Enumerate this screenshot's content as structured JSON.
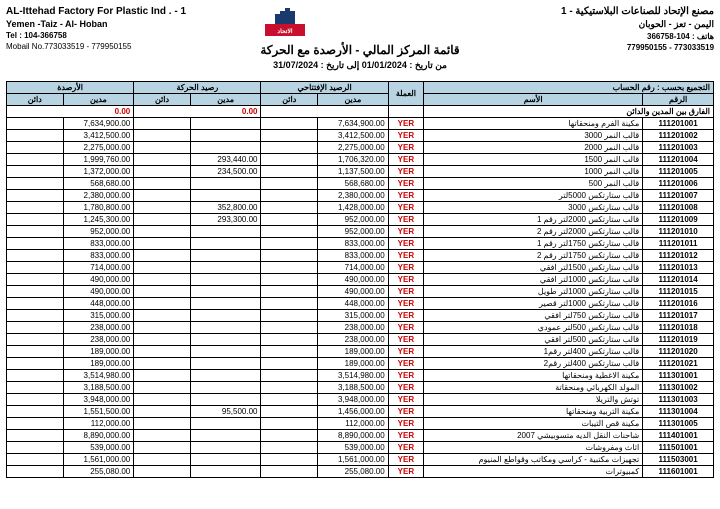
{
  "header": {
    "company_en": "AL-Ittehad Factory For Plastic Ind . - 1",
    "company_ar": "مصنع الإتحاد للصناعات البلاستيكية - 1",
    "location_en": "Yemen -Taiz - Al- Hoban",
    "location_ar": "اليمن - تعز - الحوبان",
    "tel_label_en": "Tel : ",
    "tel_en": "104-366758",
    "tel_label_ar": "هاتف : ",
    "tel_ar": "104-366758",
    "mobile_label_en": "Mobail No.",
    "mobile_en": "773033519 - 779950155",
    "mobile_ar": "773033519 - 779950155"
  },
  "report": {
    "title": "قائمة المركز المالي - الأرصدة مع الحركة",
    "from_label": "من تاريخ : ",
    "from": "01/01/2024",
    "to_label": "   إلى تاريخ : ",
    "to": "31/07/2024"
  },
  "table": {
    "group_label": "التجميع بحسب : رقم الحساب",
    "h_balance": "الأرصدة",
    "h_movement": "رصيد الحركة",
    "h_opening": "الرصيد الإفتتاحي",
    "h_currency": "العملة",
    "h_name": "الأسم",
    "h_code": "الرقم",
    "h_debit": "مدين",
    "h_credit": "دائن",
    "diff_label": "الفارق بين المدين والدائن",
    "diff_bal": "0.00",
    "diff_mov": "0.00",
    "rows": [
      {
        "code": "111201001",
        "name": "مكينة الفرم ومنحقاتها",
        "cur": "YER",
        "od": "7,634,900.00",
        "oc": "",
        "md": "",
        "mc": "",
        "bd": "7,634,900.00",
        "bc": ""
      },
      {
        "code": "111201002",
        "name": "قالب النمر 3000",
        "cur": "YER",
        "od": "3,412,500.00",
        "oc": "",
        "md": "",
        "mc": "",
        "bd": "3,412,500.00",
        "bc": ""
      },
      {
        "code": "111201003",
        "name": "قالب النمر 2000",
        "cur": "YER",
        "od": "2,275,000.00",
        "oc": "",
        "md": "",
        "mc": "",
        "bd": "2,275,000.00",
        "bc": ""
      },
      {
        "code": "111201004",
        "name": "قالب النمر 1500",
        "cur": "YER",
        "od": "1,706,320.00",
        "oc": "",
        "md": "293,440.00",
        "mc": "",
        "bd": "1,999,760.00",
        "bc": ""
      },
      {
        "code": "111201005",
        "name": "قالب النمر 1000",
        "cur": "YER",
        "od": "1,137,500.00",
        "oc": "",
        "md": "234,500.00",
        "mc": "",
        "bd": "1,372,000.00",
        "bc": ""
      },
      {
        "code": "111201006",
        "name": "قالب النمر 500",
        "cur": "YER",
        "od": "568,680.00",
        "oc": "",
        "md": "",
        "mc": "",
        "bd": "568,680.00",
        "bc": ""
      },
      {
        "code": "111201007",
        "name": "قالب ستارتكس 5000لتر",
        "cur": "YER",
        "od": "2,380,000.00",
        "oc": "",
        "md": "",
        "mc": "",
        "bd": "2,380,000.00",
        "bc": ""
      },
      {
        "code": "111201008",
        "name": "قالب ستارتكس 3000",
        "cur": "YER",
        "od": "1,428,000.00",
        "oc": "",
        "md": "352,800.00",
        "mc": "",
        "bd": "1,780,800.00",
        "bc": ""
      },
      {
        "code": "111201009",
        "name": "قالب ستارتكس 2000لتر رقم 1",
        "cur": "YER",
        "od": "952,000.00",
        "oc": "",
        "md": "293,300.00",
        "mc": "",
        "bd": "1,245,300.00",
        "bc": ""
      },
      {
        "code": "111201010",
        "name": "قالب ستارتكس 2000لتر رقم 2",
        "cur": "YER",
        "od": "952,000.00",
        "oc": "",
        "md": "",
        "mc": "",
        "bd": "952,000.00",
        "bc": ""
      },
      {
        "code": "111201011",
        "name": "قالب ستارتكس 1750لتر رقم 1",
        "cur": "YER",
        "od": "833,000.00",
        "oc": "",
        "md": "",
        "mc": "",
        "bd": "833,000.00",
        "bc": ""
      },
      {
        "code": "111201012",
        "name": "قالب ستارتكس 1750لتر رقم 2",
        "cur": "YER",
        "od": "833,000.00",
        "oc": "",
        "md": "",
        "mc": "",
        "bd": "833,000.00",
        "bc": ""
      },
      {
        "code": "111201013",
        "name": "قالب ستارتكس 1500لتر افقي",
        "cur": "YER",
        "od": "714,000.00",
        "oc": "",
        "md": "",
        "mc": "",
        "bd": "714,000.00",
        "bc": ""
      },
      {
        "code": "111201014",
        "name": "قالب ستارتكس 1000لتر افقي",
        "cur": "YER",
        "od": "490,000.00",
        "oc": "",
        "md": "",
        "mc": "",
        "bd": "490,000.00",
        "bc": ""
      },
      {
        "code": "111201015",
        "name": "قالب ستارتكس 1000لتر طويل",
        "cur": "YER",
        "od": "490,000.00",
        "oc": "",
        "md": "",
        "mc": "",
        "bd": "490,000.00",
        "bc": ""
      },
      {
        "code": "111201016",
        "name": "قالب ستارتكس 1000لتر قصير",
        "cur": "YER",
        "od": "448,000.00",
        "oc": "",
        "md": "",
        "mc": "",
        "bd": "448,000.00",
        "bc": ""
      },
      {
        "code": "111201017",
        "name": "قالب ستارتكس 750لتر افقي",
        "cur": "YER",
        "od": "315,000.00",
        "oc": "",
        "md": "",
        "mc": "",
        "bd": "315,000.00",
        "bc": ""
      },
      {
        "code": "111201018",
        "name": "قالب ستارتكس 500لتر عمودي",
        "cur": "YER",
        "od": "238,000.00",
        "oc": "",
        "md": "",
        "mc": "",
        "bd": "238,000.00",
        "bc": ""
      },
      {
        "code": "111201019",
        "name": "قالب ستارتكس 500لتر افقي",
        "cur": "YER",
        "od": "238,000.00",
        "oc": "",
        "md": "",
        "mc": "",
        "bd": "238,000.00",
        "bc": ""
      },
      {
        "code": "111201020",
        "name": "قالب ستارتكس 400لتر رقم1",
        "cur": "YER",
        "od": "189,000.00",
        "oc": "",
        "md": "",
        "mc": "",
        "bd": "189,000.00",
        "bc": ""
      },
      {
        "code": "111201021",
        "name": "قالب ستارتكس 400لتر رقم2",
        "cur": "YER",
        "od": "189,000.00",
        "oc": "",
        "md": "",
        "mc": "",
        "bd": "189,000.00",
        "bc": ""
      },
      {
        "code": "111301001",
        "name": "مكينة الاغطية ومنحقاتها",
        "cur": "YER",
        "od": "3,514,980.00",
        "oc": "",
        "md": "",
        "mc": "",
        "bd": "3,514,980.00",
        "bc": ""
      },
      {
        "code": "111301002",
        "name": "المولد الكهربائي ومنحقاتة",
        "cur": "YER",
        "od": "3,188,500.00",
        "oc": "",
        "md": "",
        "mc": "",
        "bd": "3,188,500.00",
        "bc": ""
      },
      {
        "code": "111301003",
        "name": "توتش والتريلا",
        "cur": "YER",
        "od": "3,948,000.00",
        "oc": "",
        "md": "",
        "mc": "",
        "bd": "3,948,000.00",
        "bc": ""
      },
      {
        "code": "111301004",
        "name": "مكينة التربية ومنحقاتها",
        "cur": "YER",
        "od": "1,456,000.00",
        "oc": "",
        "md": "95,500.00",
        "mc": "",
        "bd": "1,551,500.00",
        "bc": ""
      },
      {
        "code": "111301005",
        "name": "مكينة قص التيبات",
        "cur": "YER",
        "od": "112,000.00",
        "oc": "",
        "md": "",
        "mc": "",
        "bd": "112,000.00",
        "bc": ""
      },
      {
        "code": "111401001",
        "name": "شاحنات النقل الديه متسوبيشي 2007",
        "cur": "YER",
        "od": "8,890,000.00",
        "oc": "",
        "md": "",
        "mc": "",
        "bd": "8,890,000.00",
        "bc": ""
      },
      {
        "code": "111501001",
        "name": "اثاث ومفروشات",
        "cur": "YER",
        "od": "539,000.00",
        "oc": "",
        "md": "",
        "mc": "",
        "bd": "539,000.00",
        "bc": ""
      },
      {
        "code": "111503001",
        "name": "تجهيزات مكتبية - كراسي ومكاتب وقواطع المنيوم",
        "cur": "YER",
        "od": "1,561,000.00",
        "oc": "",
        "md": "",
        "mc": "",
        "bd": "1,561,000.00",
        "bc": ""
      },
      {
        "code": "111601001",
        "name": "كمبيوترات",
        "cur": "YER",
        "od": "255,080.00",
        "oc": "",
        "md": "",
        "mc": "",
        "bd": "255,080.00",
        "bc": ""
      }
    ]
  },
  "style": {
    "header_bg": "#b8d4e3",
    "currency_color": "#c00",
    "border_color": "#000"
  }
}
